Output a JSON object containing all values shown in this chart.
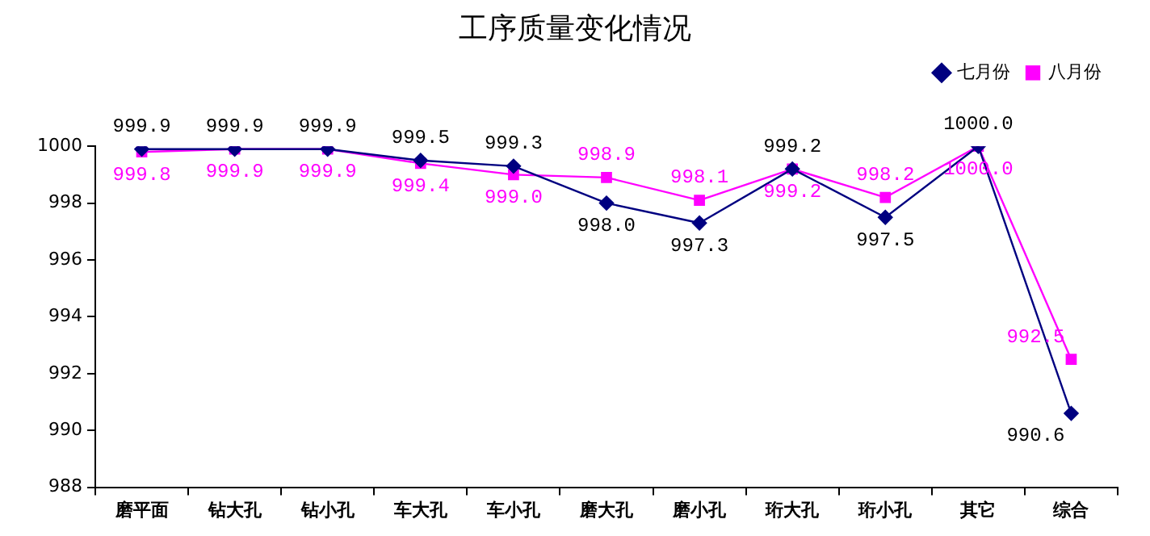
{
  "chart_data": {
    "type": "line",
    "title": "工序质量变化情况",
    "categories": [
      "磨平面",
      "钻大孔",
      "钻小孔",
      "车大孔",
      "车小孔",
      "磨大孔",
      "磨小孔",
      "珩大孔",
      "珩小孔",
      "其它",
      "综合"
    ],
    "series": [
      {
        "name": "七月份",
        "color": "#000080",
        "marker": "diamond",
        "values": [
          999.9,
          999.9,
          999.9,
          999.5,
          999.3,
          998.0,
          997.3,
          999.2,
          997.5,
          1000.0,
          990.6
        ],
        "value_labels": [
          "999.9",
          "999.9",
          "999.9",
          "999.5",
          "999.3",
          "998.0",
          "997.3",
          "999.2",
          "997.5",
          "1000.0",
          "990.6"
        ]
      },
      {
        "name": "八月份",
        "color": "#ff00ff",
        "marker": "square",
        "values": [
          999.8,
          999.9,
          999.9,
          999.4,
          999.0,
          998.9,
          998.1,
          999.2,
          998.2,
          1000.0,
          992.5
        ],
        "value_labels": [
          "999.8",
          "999.9",
          "999.9",
          "999.4",
          "999.0",
          "998.9",
          "998.1",
          "999.2",
          "998.2",
          "1000.0",
          "992.5"
        ]
      }
    ],
    "ylim": [
      988,
      1000
    ],
    "yticks": [
      988,
      990,
      992,
      994,
      996,
      998,
      1000
    ],
    "grid": false,
    "legend": "top right",
    "line_style": "solid"
  }
}
